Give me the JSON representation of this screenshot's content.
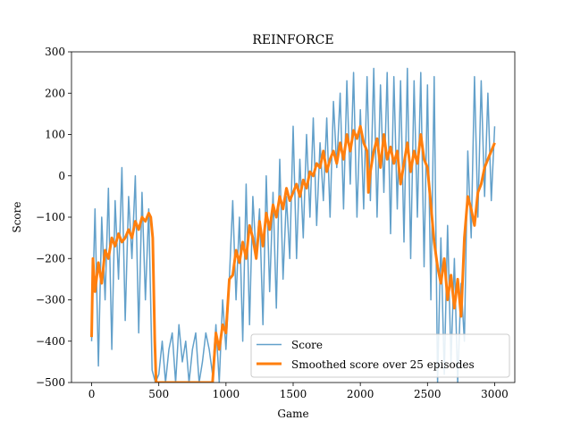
{
  "chart_data": {
    "type": "line",
    "title": "REINFORCE",
    "xlabel": "Game",
    "ylabel": "Score",
    "xlim": [
      -150,
      3150
    ],
    "ylim": [
      -500,
      300
    ],
    "xticks": [
      0,
      500,
      1000,
      1500,
      2000,
      2500,
      3000
    ],
    "xtick_labels": [
      "0",
      "500",
      "1000",
      "1500",
      "2000",
      "2500",
      "3000"
    ],
    "yticks": [
      -500,
      -400,
      -300,
      -200,
      -100,
      0,
      100,
      200,
      300
    ],
    "ytick_labels": [
      "−500",
      "−400",
      "−300",
      "−200",
      "−100",
      "0",
      "100",
      "200",
      "300"
    ],
    "legend_position": "lower-right",
    "series": [
      {
        "name": "Score",
        "color": "#1f77b4",
        "opacity": 0.7,
        "line_width": 1.5,
        "x": [
          0,
          25,
          50,
          75,
          100,
          125,
          150,
          175,
          200,
          225,
          250,
          275,
          300,
          325,
          350,
          375,
          400,
          425,
          450,
          475,
          500,
          525,
          550,
          575,
          600,
          625,
          650,
          675,
          700,
          725,
          750,
          775,
          800,
          825,
          850,
          875,
          900,
          925,
          950,
          975,
          1000,
          1025,
          1050,
          1075,
          1100,
          1125,
          1150,
          1175,
          1200,
          1225,
          1250,
          1275,
          1300,
          1325,
          1350,
          1375,
          1400,
          1425,
          1450,
          1475,
          1500,
          1525,
          1550,
          1575,
          1600,
          1625,
          1650,
          1675,
          1700,
          1725,
          1750,
          1775,
          1800,
          1825,
          1850,
          1875,
          1900,
          1925,
          1950,
          1975,
          2000,
          2025,
          2050,
          2075,
          2100,
          2125,
          2150,
          2175,
          2200,
          2225,
          2250,
          2275,
          2300,
          2325,
          2350,
          2375,
          2400,
          2425,
          2450,
          2475,
          2500,
          2525,
          2550,
          2575,
          2600,
          2625,
          2650,
          2675,
          2700,
          2725,
          2750,
          2775,
          2800,
          2825,
          2850,
          2875,
          2900,
          2925,
          2950,
          2975,
          3000
        ],
        "y": [
          -400,
          -80,
          -460,
          -100,
          -300,
          -30,
          -420,
          -60,
          -250,
          20,
          -350,
          -50,
          -200,
          0,
          -380,
          -40,
          -300,
          -80,
          -470,
          -500,
          -480,
          -400,
          -500,
          -420,
          -380,
          -500,
          -360,
          -450,
          -400,
          -500,
          -420,
          -380,
          -500,
          -450,
          -380,
          -420,
          -480,
          -360,
          -500,
          -300,
          -420,
          -250,
          -60,
          -300,
          -100,
          -400,
          -20,
          -360,
          -50,
          -200,
          -80,
          -360,
          0,
          -280,
          -40,
          -320,
          40,
          -250,
          -50,
          -200,
          120,
          -200,
          40,
          -150,
          100,
          -100,
          140,
          -120,
          80,
          -60,
          140,
          -100,
          180,
          20,
          200,
          -80,
          230,
          -20,
          250,
          -100,
          160,
          -80,
          240,
          -60,
          260,
          -100,
          220,
          -40,
          250,
          -140,
          240,
          -80,
          230,
          -160,
          260,
          -200,
          230,
          -100,
          250,
          -220,
          220,
          -300,
          240,
          -500,
          -150,
          -480,
          -120,
          -450,
          -200,
          -500,
          -260,
          -400,
          60,
          -150,
          240,
          -100,
          230,
          -50,
          200,
          -60,
          120
        ]
      },
      {
        "name": "Smoothed score over 25 episodes",
        "color": "#ff7f0e",
        "opacity": 1,
        "line_width": 3,
        "x": [
          0,
          10,
          25,
          50,
          75,
          100,
          125,
          150,
          175,
          200,
          225,
          250,
          275,
          300,
          325,
          350,
          375,
          400,
          425,
          440,
          455,
          470,
          480,
          500,
          550,
          600,
          650,
          700,
          750,
          800,
          850,
          900,
          925,
          950,
          975,
          1000,
          1025,
          1050,
          1075,
          1100,
          1125,
          1150,
          1175,
          1200,
          1225,
          1250,
          1275,
          1300,
          1325,
          1350,
          1375,
          1400,
          1425,
          1450,
          1475,
          1500,
          1525,
          1550,
          1575,
          1600,
          1625,
          1650,
          1675,
          1700,
          1725,
          1750,
          1775,
          1800,
          1825,
          1850,
          1875,
          1900,
          1925,
          1950,
          1975,
          2000,
          2025,
          2050,
          2060,
          2075,
          2100,
          2125,
          2150,
          2175,
          2200,
          2225,
          2250,
          2275,
          2300,
          2325,
          2350,
          2375,
          2400,
          2425,
          2450,
          2475,
          2500,
          2525,
          2550,
          2575,
          2600,
          2625,
          2650,
          2675,
          2700,
          2725,
          2750,
          2775,
          2800,
          2825,
          2850,
          2875,
          2900,
          2925,
          2950,
          2975,
          3000
        ],
        "y": [
          -390,
          -200,
          -280,
          -210,
          -260,
          -180,
          -200,
          -150,
          -170,
          -140,
          -160,
          -150,
          -130,
          -150,
          -110,
          -130,
          -100,
          -110,
          -90,
          -100,
          -150,
          -400,
          -500,
          -500,
          -500,
          -500,
          -500,
          -500,
          -500,
          -500,
          -500,
          -500,
          -380,
          -420,
          -360,
          -380,
          -250,
          -240,
          -180,
          -210,
          -160,
          -200,
          -120,
          -150,
          -200,
          -110,
          -170,
          -90,
          -130,
          -70,
          -100,
          -50,
          -80,
          -30,
          -60,
          -40,
          -20,
          -50,
          -10,
          -30,
          10,
          0,
          30,
          20,
          60,
          10,
          40,
          60,
          30,
          80,
          40,
          100,
          60,
          110,
          90,
          120,
          80,
          60,
          -40,
          10,
          60,
          90,
          20,
          100,
          40,
          70,
          30,
          60,
          -20,
          30,
          80,
          10,
          60,
          30,
          100,
          40,
          20,
          -70,
          -160,
          -220,
          -260,
          -200,
          -300,
          -240,
          -320,
          -250,
          -340,
          -150,
          -50,
          -80,
          -120,
          -40,
          -20,
          20,
          40,
          60,
          80
        ]
      }
    ]
  }
}
